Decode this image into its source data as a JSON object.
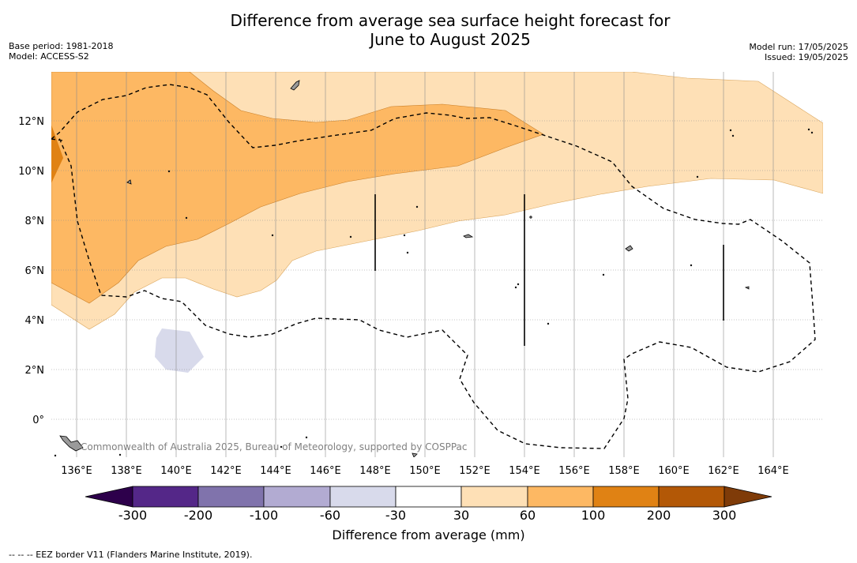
{
  "title_line1": "Difference from average sea surface height forecast for",
  "title_line2": "June to August 2025",
  "meta_left": [
    "Base period: 1981-2018",
    "Model: ACCESS-S2"
  ],
  "meta_right": [
    "Model run: 17/05/2025",
    "Issued: 19/05/2025"
  ],
  "copyright": "Commonwealth of Australia 2025, Bureau of Meteorology, supported by COSPPac",
  "footer": "--  --  -- EEZ border V11 (Flanders Marine Institute, 2019).",
  "map": {
    "lon_range": [
      135,
      166
    ],
    "lat_range": [
      -1.5,
      14
    ],
    "lon_ticks": [
      "136°E",
      "138°E",
      "140°E",
      "142°E",
      "144°E",
      "146°E",
      "148°E",
      "150°E",
      "152°E",
      "154°E",
      "156°E",
      "158°E",
      "160°E",
      "162°E",
      "164°E"
    ],
    "lat_ticks": [
      "12°N",
      "10°N",
      "8°N",
      "6°N",
      "4°N",
      "2°N",
      "0°"
    ]
  },
  "colorbar": {
    "title": "Difference from average (mm)",
    "tick_labels": [
      "-300",
      "-200",
      "-100",
      "-60",
      "-30",
      "30",
      "60",
      "100",
      "200",
      "300"
    ],
    "colors": [
      "#2d004b",
      "#542788",
      "#8073ac",
      "#b2abd2",
      "#d8daeb",
      "#ffffff",
      "#fee0b6",
      "#fdb863",
      "#e08214",
      "#b35806",
      "#7f3b08"
    ]
  }
}
